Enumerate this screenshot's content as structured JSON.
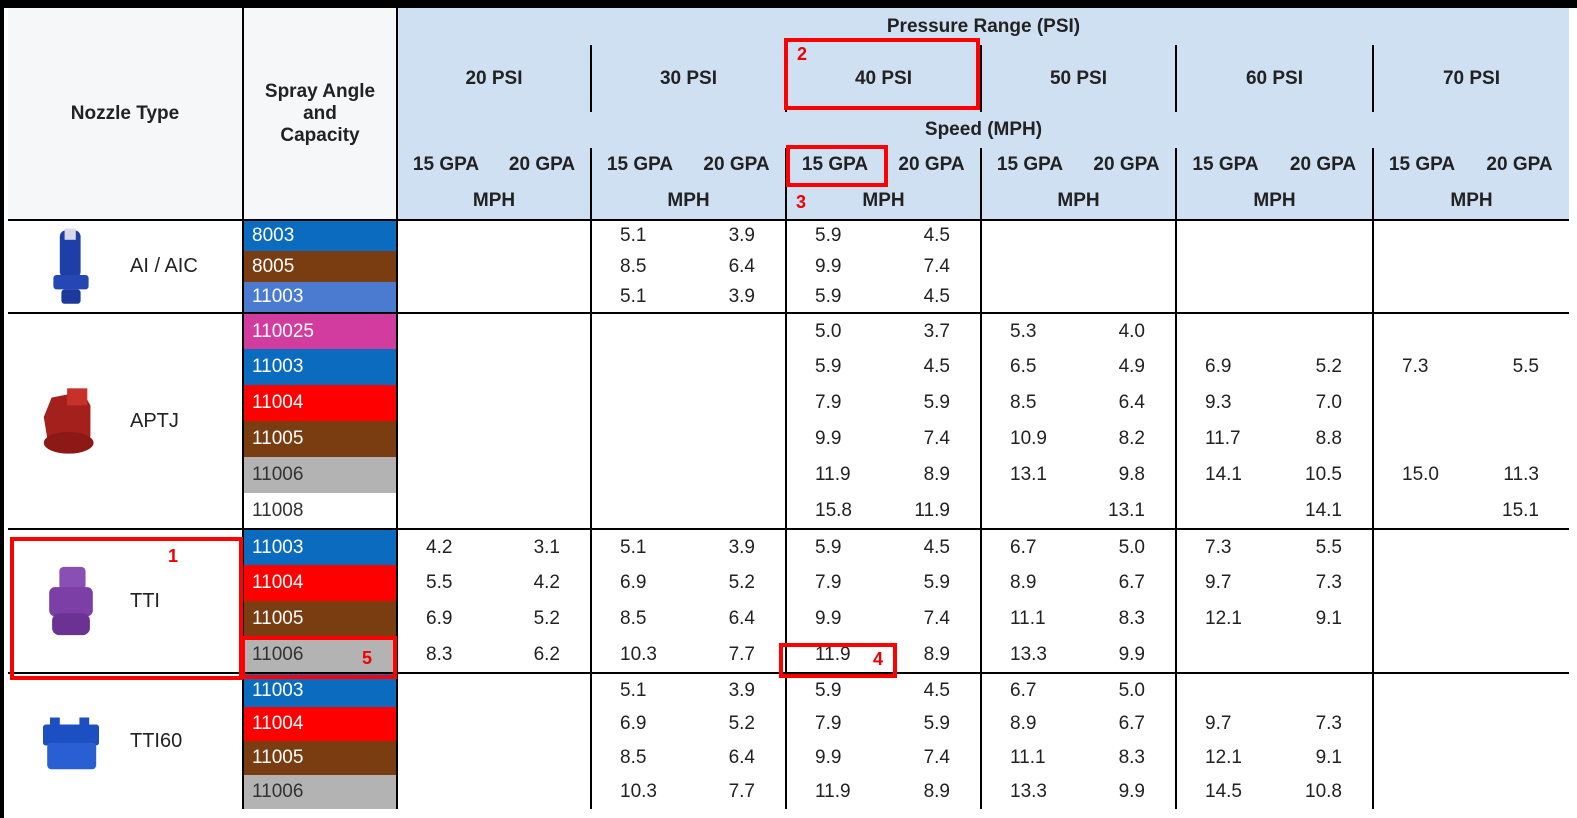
{
  "table": {
    "header": {
      "nozzle_type": "Nozzle Type",
      "spray_angle": "Spray Angle and Capacity",
      "pressure_range": "Pressure Range (PSI)",
      "pressures": [
        "20 PSI",
        "30 PSI",
        "40 PSI",
        "50 PSI",
        "60 PSI",
        "70 PSI"
      ],
      "speed": "Speed (MPH)",
      "gpa": [
        "15 GPA",
        "20 GPA",
        "15 GPA",
        "20 GPA",
        "15 GPA",
        "20 GPA",
        "15 GPA",
        "20 GPA",
        "15 GPA",
        "20 GPA",
        "15 GPA",
        "20 GPA"
      ],
      "units": [
        "MPH",
        "MPH",
        "MPH",
        "MPH",
        "MPH",
        "MPH"
      ]
    },
    "groups": [
      {
        "nozzle": "AI / AIC",
        "rows": [
          {
            "code": "8003",
            "color": "#0b6cbf",
            "values": [
              null,
              null,
              "5.1",
              "3.9",
              "5.9",
              "4.5",
              null,
              null,
              null,
              null,
              null,
              null
            ]
          },
          {
            "code": "8005",
            "color": "#7a3d12",
            "values": [
              null,
              null,
              "8.5",
              "6.4",
              "9.9",
              "7.4",
              null,
              null,
              null,
              null,
              null,
              null
            ]
          },
          {
            "code": "11003",
            "color": "#4a7bd0",
            "values": [
              null,
              null,
              "5.1",
              "3.9",
              "5.9",
              "4.5",
              null,
              null,
              null,
              null,
              null,
              null
            ]
          }
        ]
      },
      {
        "nozzle": "APTJ",
        "rows": [
          {
            "code": "110025",
            "color": "#d23c9e",
            "values": [
              null,
              null,
              null,
              null,
              "5.0",
              "3.7",
              "5.3",
              "4.0",
              null,
              null,
              null,
              null
            ]
          },
          {
            "code": "11003",
            "color": "#0b6cbf",
            "values": [
              null,
              null,
              null,
              null,
              "5.9",
              "4.5",
              "6.5",
              "4.9",
              "6.9",
              "5.2",
              "7.3",
              "5.5"
            ]
          },
          {
            "code": "11004",
            "color": "#ff0000",
            "values": [
              null,
              null,
              null,
              null,
              "7.9",
              "5.9",
              "8.5",
              "6.4",
              "9.3",
              "7.0",
              null,
              null
            ]
          },
          {
            "code": "11005",
            "color": "#7a3d12",
            "values": [
              null,
              null,
              null,
              null,
              "9.9",
              "7.4",
              "10.9",
              "8.2",
              "11.7",
              "8.8",
              null,
              null
            ]
          },
          {
            "code": "11006",
            "color": "#b3b3b3",
            "values": [
              null,
              null,
              null,
              null,
              "11.9",
              "8.9",
              "13.1",
              "9.8",
              "14.1",
              "10.5",
              "15.0",
              "11.3"
            ]
          },
          {
            "code": "11008",
            "color": "#ffffff",
            "values": [
              null,
              null,
              null,
              null,
              "15.8",
              "11.9",
              null,
              "13.1",
              null,
              "14.1",
              null,
              "15.1"
            ]
          }
        ]
      },
      {
        "nozzle": "TTI",
        "rows": [
          {
            "code": "11003",
            "color": "#0b6cbf",
            "values": [
              "4.2",
              "3.1",
              "5.1",
              "3.9",
              "5.9",
              "4.5",
              "6.7",
              "5.0",
              "7.3",
              "5.5",
              null,
              null
            ]
          },
          {
            "code": "11004",
            "color": "#ff0000",
            "values": [
              "5.5",
              "4.2",
              "6.9",
              "5.2",
              "7.9",
              "5.9",
              "8.9",
              "6.7",
              "9.7",
              "7.3",
              null,
              null
            ]
          },
          {
            "code": "11005",
            "color": "#7a3d12",
            "values": [
              "6.9",
              "5.2",
              "8.5",
              "6.4",
              "9.9",
              "7.4",
              "11.1",
              "8.3",
              "12.1",
              "9.1",
              null,
              null
            ]
          },
          {
            "code": "11006",
            "color": "#b3b3b3",
            "values": [
              "8.3",
              "6.2",
              "10.3",
              "7.7",
              "11.9",
              "8.9",
              "13.3",
              "9.9",
              null,
              null,
              null,
              null
            ]
          }
        ]
      },
      {
        "nozzle": "TTI60",
        "rows": [
          {
            "code": "11003",
            "color": "#0b6cbf",
            "values": [
              null,
              null,
              "5.1",
              "3.9",
              "5.9",
              "4.5",
              "6.7",
              "5.0",
              null,
              null,
              null,
              null
            ]
          },
          {
            "code": "11004",
            "color": "#ff0000",
            "values": [
              null,
              null,
              "6.9",
              "5.2",
              "7.9",
              "5.9",
              "8.9",
              "6.7",
              "9.7",
              "7.3",
              null,
              null
            ]
          },
          {
            "code": "11005",
            "color": "#7a3d12",
            "values": [
              null,
              null,
              "8.5",
              "6.4",
              "9.9",
              "7.4",
              "11.1",
              "8.3",
              "12.1",
              "9.1",
              null,
              null
            ]
          },
          {
            "code": "11006",
            "color": "#b3b3b3",
            "values": [
              null,
              null,
              "10.3",
              "7.7",
              "11.9",
              "8.9",
              "13.3",
              "9.9",
              "14.5",
              "10.8",
              null,
              null
            ]
          }
        ]
      }
    ],
    "annotations": [
      "1",
      "2",
      "3",
      "4",
      "5"
    ]
  }
}
